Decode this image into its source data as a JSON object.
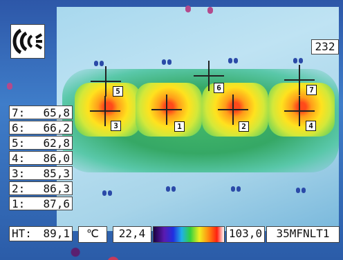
{
  "topright_value": "232",
  "rows": [
    {
      "label": "7:",
      "value": "65,8"
    },
    {
      "label": "6:",
      "value": "66,2"
    },
    {
      "label": "5:",
      "value": "62,8"
    },
    {
      "label": "4:",
      "value": "86,0"
    },
    {
      "label": "3:",
      "value": "85,3"
    },
    {
      "label": "2:",
      "value": "86,3"
    },
    {
      "label": "1:",
      "value": "87,6"
    }
  ],
  "ht": {
    "label": "HT:",
    "value": "89,1"
  },
  "unit_symbol": "℃",
  "scale_min": "22,4",
  "scale_max": "103,0",
  "device_code": "35MFNLT1",
  "markers": [
    "1",
    "2",
    "3",
    "4",
    "5",
    "6",
    "7"
  ],
  "palette": {
    "hot": "#ff3a10",
    "warm": "#ffe21e",
    "cool": "#2fa55e",
    "bg": "#a8d8ee"
  }
}
